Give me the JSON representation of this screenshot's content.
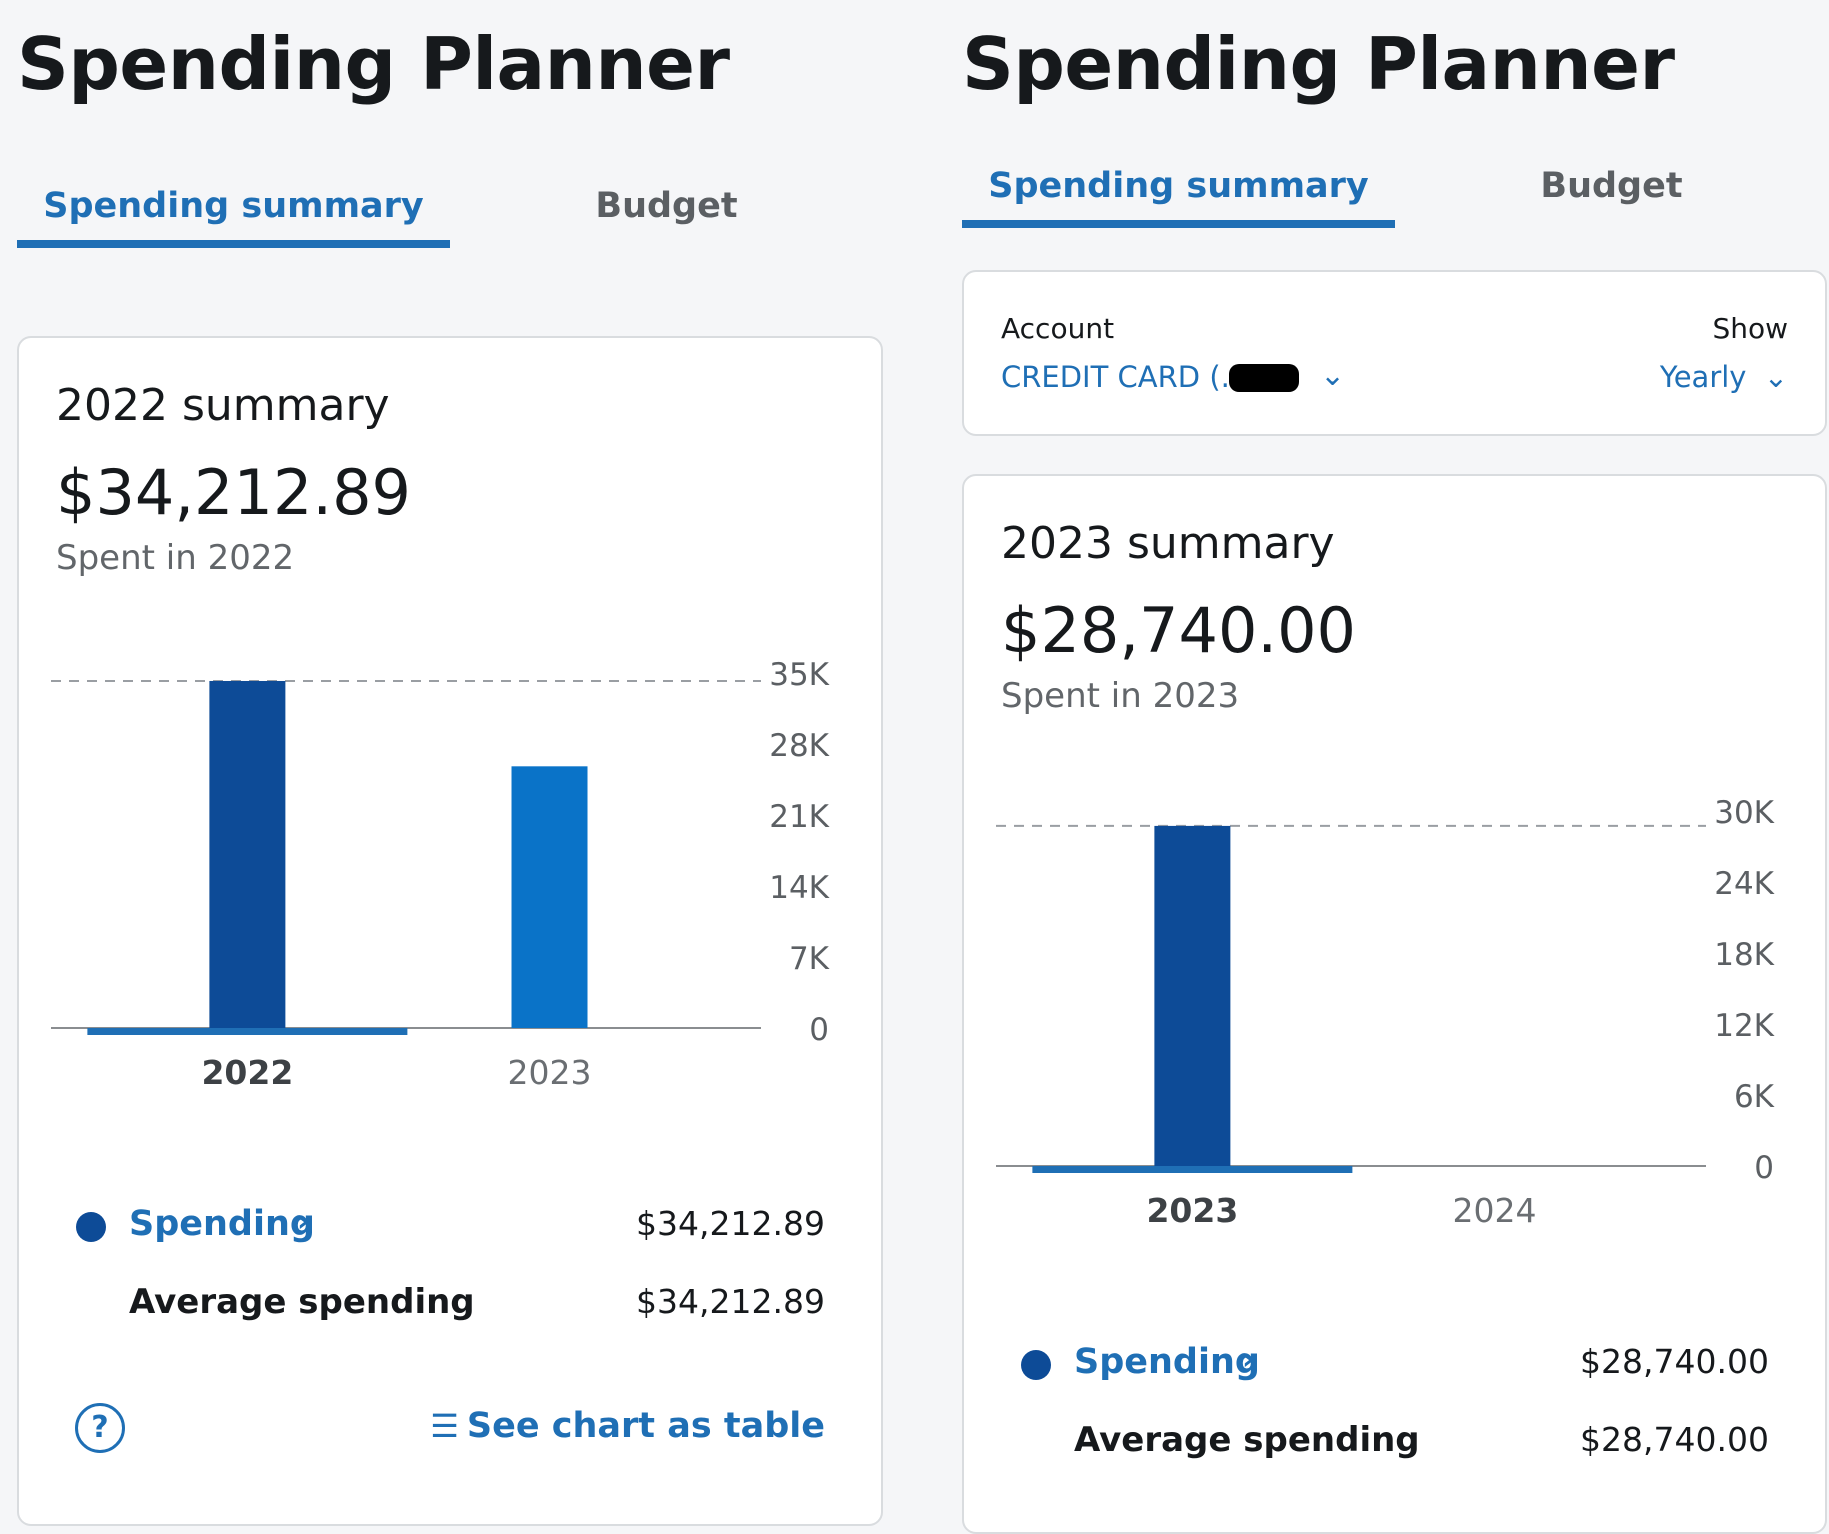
{
  "left": {
    "page_title": "Spending Planner",
    "tabs": [
      {
        "label": "Spending summary",
        "active": true
      },
      {
        "label": "Budget",
        "active": false
      }
    ],
    "summary": {
      "title": "2022 summary",
      "amount": "$34,212.89",
      "subtitle": "Spent in 2022"
    },
    "legend": {
      "spending_label": "Spending",
      "spending_value": "$34,212.89",
      "average_label": "Average spending",
      "average_value": "$34,212.89"
    },
    "footer": {
      "help_icon": "?",
      "table_link": "See chart as table"
    }
  },
  "right": {
    "page_title": "Spending Planner",
    "tabs": [
      {
        "label": "Spending summary",
        "active": true
      },
      {
        "label": "Budget",
        "active": false
      }
    ],
    "filters": {
      "account_label": "Account",
      "account_value": "CREDIT CARD (...",
      "show_label": "Show",
      "show_value": "Yearly"
    },
    "summary": {
      "title": "2023 summary",
      "amount": "$28,740.00",
      "subtitle": "Spent in 2023"
    },
    "legend": {
      "spending_label": "Spending",
      "spending_value": "$28,740.00",
      "average_label": "Average spending",
      "average_value": "$28,740.00"
    }
  },
  "colors": {
    "accent": "#1f6fb5",
    "bar_selected": "#0d4b97",
    "bar_other": "#0a73c8",
    "background": "#f5f6f8"
  },
  "chart_data": [
    {
      "type": "bar",
      "title": "2022 summary",
      "categories": [
        "2022",
        "2023"
      ],
      "values": [
        34212.89,
        25800
      ],
      "selected": "2022",
      "average": 34212.89,
      "yticks": [
        "0",
        "7K",
        "14K",
        "21K",
        "28K",
        "35K"
      ],
      "ylim": [
        0,
        35000
      ],
      "xlabel": "",
      "ylabel": ""
    },
    {
      "type": "bar",
      "title": "2023 summary",
      "categories": [
        "2023",
        "2024"
      ],
      "values": [
        28740.0,
        0
      ],
      "selected": "2023",
      "average": 28740.0,
      "yticks": [
        "0",
        "6K",
        "12K",
        "18K",
        "24K",
        "30K"
      ],
      "ylim": [
        0,
        30000
      ],
      "xlabel": "",
      "ylabel": ""
    }
  ]
}
